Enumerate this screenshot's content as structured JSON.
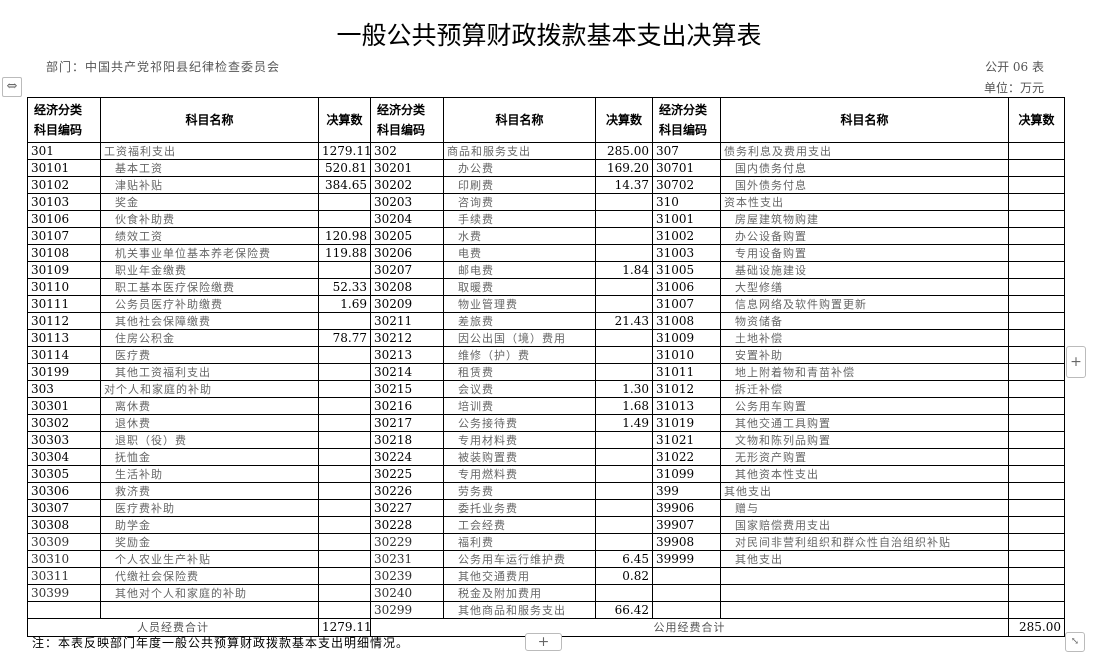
{
  "title": "一般公共预算财政拨款基本支出决算表",
  "department": "部门：中国共产党祁阳县纪律检查委员会",
  "form_no": "公开 06 表",
  "unit": "单位：万元",
  "headers": {
    "code_line1": "经济分类",
    "code_line2": "科目编码",
    "name": "科目名称",
    "amount": "决算数"
  },
  "left": [
    [
      "301",
      "工资福利支出",
      "1279.11"
    ],
    [
      "30101",
      "基本工资",
      "520.81"
    ],
    [
      "30102",
      "津贴补贴",
      "384.65"
    ],
    [
      "30103",
      "奖金",
      ""
    ],
    [
      "30106",
      "伙食补助费",
      ""
    ],
    [
      "30107",
      "绩效工资",
      "120.98"
    ],
    [
      "30108",
      "机关事业单位基本养老保险费",
      "119.88"
    ],
    [
      "30109",
      "职业年金缴费",
      ""
    ],
    [
      "30110",
      "职工基本医疗保险缴费",
      "52.33"
    ],
    [
      "30111",
      "公务员医疗补助缴费",
      "1.69"
    ],
    [
      "30112",
      "其他社会保障缴费",
      ""
    ],
    [
      "30113",
      "住房公积金",
      "78.77"
    ],
    [
      "30114",
      "医疗费",
      ""
    ],
    [
      "30199",
      "其他工资福利支出",
      ""
    ],
    [
      "303",
      "对个人和家庭的补助",
      ""
    ],
    [
      "30301",
      "离休费",
      ""
    ],
    [
      "30302",
      "退休费",
      ""
    ],
    [
      "30303",
      "退职（役）费",
      ""
    ],
    [
      "30304",
      "抚恤金",
      ""
    ],
    [
      "30305",
      "生活补助",
      ""
    ],
    [
      "30306",
      "救济费",
      ""
    ],
    [
      "30307",
      "医疗费补助",
      ""
    ],
    [
      "30308",
      "助学金",
      ""
    ],
    [
      "30309",
      "奖励金",
      ""
    ],
    [
      "30310",
      "个人农业生产补贴",
      ""
    ],
    [
      "30311",
      "代缴社会保险费",
      ""
    ],
    [
      "30399",
      "其他对个人和家庭的补助",
      ""
    ],
    [
      "",
      "",
      ""
    ]
  ],
  "middle": [
    [
      "302",
      "商品和服务支出",
      "285.00"
    ],
    [
      "30201",
      "办公费",
      "169.20"
    ],
    [
      "30202",
      "印刷费",
      "14.37"
    ],
    [
      "30203",
      "咨询费",
      ""
    ],
    [
      "30204",
      "手续费",
      ""
    ],
    [
      "30205",
      "水费",
      ""
    ],
    [
      "30206",
      "电费",
      ""
    ],
    [
      "30207",
      "邮电费",
      "1.84"
    ],
    [
      "30208",
      "取暖费",
      ""
    ],
    [
      "30209",
      "物业管理费",
      ""
    ],
    [
      "30211",
      "差旅费",
      "21.43"
    ],
    [
      "30212",
      "因公出国（境）费用",
      ""
    ],
    [
      "30213",
      "维修（护）费",
      ""
    ],
    [
      "30214",
      "租赁费",
      ""
    ],
    [
      "30215",
      "会议费",
      "1.30"
    ],
    [
      "30216",
      "培训费",
      "1.68"
    ],
    [
      "30217",
      "公务接待费",
      "1.49"
    ],
    [
      "30218",
      "专用材料费",
      ""
    ],
    [
      "30224",
      "被装购置费",
      ""
    ],
    [
      "30225",
      "专用燃料费",
      ""
    ],
    [
      "30226",
      "劳务费",
      ""
    ],
    [
      "30227",
      "委托业务费",
      ""
    ],
    [
      "30228",
      "工会经费",
      ""
    ],
    [
      "30229",
      "福利费",
      ""
    ],
    [
      "30231",
      "公务用车运行维护费",
      "6.45"
    ],
    [
      "30239",
      "其他交通费用",
      "0.82"
    ],
    [
      "30240",
      "税金及附加费用",
      ""
    ],
    [
      "30299",
      "其他商品和服务支出",
      "66.42"
    ]
  ],
  "right": [
    [
      "307",
      "债务利息及费用支出",
      ""
    ],
    [
      "30701",
      "国内债务付息",
      ""
    ],
    [
      "30702",
      "国外债务付息",
      ""
    ],
    [
      "310",
      "资本性支出",
      ""
    ],
    [
      "31001",
      "房屋建筑物购建",
      ""
    ],
    [
      "31002",
      "办公设备购置",
      ""
    ],
    [
      "31003",
      "专用设备购置",
      ""
    ],
    [
      "31005",
      "基础设施建设",
      ""
    ],
    [
      "31006",
      "大型修缮",
      ""
    ],
    [
      "31007",
      "信息网络及软件购置更新",
      ""
    ],
    [
      "31008",
      "物资储备",
      ""
    ],
    [
      "31009",
      "土地补偿",
      ""
    ],
    [
      "31010",
      "安置补助",
      ""
    ],
    [
      "31011",
      "地上附着物和青苗补偿",
      ""
    ],
    [
      "31012",
      "拆迁补偿",
      ""
    ],
    [
      "31013",
      "公务用车购置",
      ""
    ],
    [
      "31019",
      "其他交通工具购置",
      ""
    ],
    [
      "31021",
      "文物和陈列品购置",
      ""
    ],
    [
      "31022",
      "无形资产购置",
      ""
    ],
    [
      "31099",
      "其他资本性支出",
      ""
    ],
    [
      "399",
      "其他支出",
      ""
    ],
    [
      "39906",
      "赠与",
      ""
    ],
    [
      "39907",
      "国家赔偿费用支出",
      ""
    ],
    [
      "39908",
      "对民间非营利组织和群众性自治组织补贴",
      ""
    ],
    [
      "39999",
      "其他支出",
      ""
    ],
    [
      "",
      "",
      ""
    ],
    [
      "",
      "",
      ""
    ],
    [
      "",
      "",
      ""
    ]
  ],
  "totals": {
    "personnel_label": "人员经费合计",
    "personnel_value": "1279.11",
    "public_label": "公用经费合计",
    "public_value": "285.00"
  },
  "note": "注：本表反映部门年度一般公共预算财政拨款基本支出明细情况。",
  "controls": {
    "move_icon": "⇔",
    "expand_plus": "+",
    "add_plus": "+",
    "resize_icon": "⤡"
  }
}
